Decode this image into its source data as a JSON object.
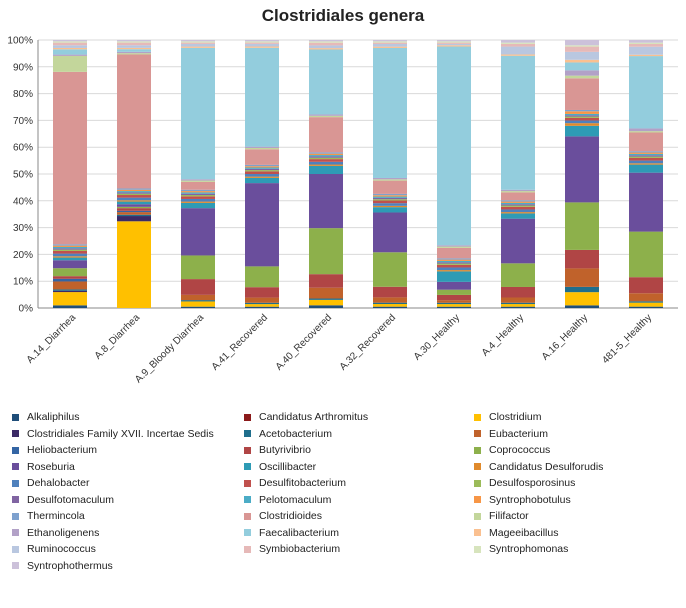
{
  "chart_data": {
    "type": "bar",
    "stacked": true,
    "percent": true,
    "title": "Clostridiales genera",
    "xlabel": "",
    "ylabel": "",
    "ylim": [
      0,
      100
    ],
    "y_ticks": [
      "0%",
      "10%",
      "20%",
      "30%",
      "40%",
      "50%",
      "60%",
      "70%",
      "80%",
      "90%",
      "100%"
    ],
    "categories": [
      "A.14_Diarrhea",
      "A.8_Diarrhea",
      "A.9_Bloody Diarrhea",
      "A.41_Recovered",
      "A.40_Recovered",
      "A.32_Recovered",
      "A.30_Healthy",
      "A.4_Healthy",
      "A.16_Healthy",
      "481-5_Healthy"
    ],
    "series": [
      {
        "name": "Alkaliphilus",
        "color": "#1F4E79",
        "values": [
          1,
          0,
          0.5,
          0.5,
          1,
          0.5,
          0.5,
          0.5,
          1,
          0.5
        ]
      },
      {
        "name": "Candidatus Arthromitus",
        "color": "#8B1A1A",
        "values": [
          0,
          0,
          0,
          0,
          0,
          0,
          0,
          0,
          0,
          0
        ]
      },
      {
        "name": "Clostridium",
        "color": "#FFC000",
        "values": [
          5,
          33,
          2,
          1,
          2,
          1,
          1,
          1,
          5,
          1.5
        ]
      },
      {
        "name": "Clostridiales Family XVII. Incertae Sedis",
        "color": "#3B2A66",
        "values": [
          0.5,
          2,
          0,
          0,
          0,
          0,
          0,
          0,
          0,
          0
        ]
      },
      {
        "name": "Acetobacterium",
        "color": "#1F6E8C",
        "values": [
          0.5,
          0.5,
          0.5,
          0.5,
          0.5,
          0.5,
          0.5,
          0.5,
          2,
          0.5
        ]
      },
      {
        "name": "Eubacterium",
        "color": "#C0622B",
        "values": [
          3,
          1,
          2,
          2,
          4,
          2,
          1,
          2,
          7,
          3
        ]
      },
      {
        "name": "Heliobacterium",
        "color": "#3465A4",
        "values": [
          1,
          0.5,
          0,
          0,
          0,
          0,
          0,
          0,
          0,
          0
        ]
      },
      {
        "name": "Butyrivibrio",
        "color": "#B04545",
        "values": [
          1,
          1,
          6,
          4,
          5,
          4,
          2,
          4,
          7,
          6
        ]
      },
      {
        "name": "Coprococcus",
        "color": "#8DB04B",
        "values": [
          3,
          0.5,
          9,
          8,
          17,
          13,
          2,
          9,
          18,
          17
        ]
      },
      {
        "name": "Roseburia",
        "color": "#6A4E9C",
        "values": [
          3,
          1,
          18,
          32,
          20,
          15,
          3,
          17,
          25,
          22
        ]
      },
      {
        "name": "Oscillibacter",
        "color": "#2E9BB5",
        "values": [
          1,
          1,
          2,
          2,
          3,
          2,
          4,
          2,
          4,
          3
        ]
      },
      {
        "name": "Candidatus Desulforudis",
        "color": "#E08A2C",
        "values": [
          0.5,
          0.5,
          0.5,
          0.5,
          0.5,
          0.5,
          0.5,
          0.5,
          1,
          0.5
        ]
      },
      {
        "name": "Dehalobacter",
        "color": "#4F81BD",
        "values": [
          1,
          1,
          1,
          1,
          1,
          1,
          1,
          1,
          1,
          1
        ]
      },
      {
        "name": "Desulfitobacterium",
        "color": "#C0504D",
        "values": [
          1,
          1,
          1,
          1,
          1,
          1,
          1,
          1,
          1,
          1
        ]
      },
      {
        "name": "Desulfosporosinus",
        "color": "#9BBB59",
        "values": [
          0.5,
          0.5,
          0.5,
          0.5,
          0.5,
          0.5,
          0.5,
          0.5,
          0.5,
          0.5
        ]
      },
      {
        "name": "Desulfotomaculum",
        "color": "#8064A2",
        "values": [
          0.5,
          0.5,
          0.5,
          0.5,
          0.5,
          0.5,
          0.5,
          0.5,
          0.5,
          0.5
        ]
      },
      {
        "name": "Pelotomaculum",
        "color": "#4BACC6",
        "values": [
          0.5,
          0.5,
          0.5,
          0.5,
          0.5,
          0.5,
          0.5,
          0.5,
          0.5,
          0.5
        ]
      },
      {
        "name": "Syntrophobotulus",
        "color": "#F79646",
        "values": [
          0.5,
          0.5,
          0.5,
          0.5,
          0.5,
          0.5,
          0.5,
          0.5,
          1,
          0.5
        ]
      },
      {
        "name": "Thermincola",
        "color": "#7EA1CE",
        "values": [
          0.5,
          0.5,
          0.5,
          0.5,
          0.5,
          0.5,
          0.5,
          0.5,
          0.5,
          0.5
        ]
      },
      {
        "name": "Clostridioides",
        "color": "#D99694",
        "values": [
          65,
          51,
          3,
          6,
          13,
          5,
          4,
          3,
          12,
          7
        ]
      },
      {
        "name": "Filifactor",
        "color": "#C3D69B",
        "values": [
          6,
          0.5,
          0.5,
          0.5,
          0.5,
          0.5,
          0.5,
          0.5,
          1,
          0.5
        ]
      },
      {
        "name": "Ethanoligenens",
        "color": "#B2A1C7",
        "values": [
          0.5,
          0.5,
          0.5,
          0.5,
          0.5,
          0.5,
          0.5,
          0.5,
          2,
          1
        ]
      },
      {
        "name": "Faecalibacterium",
        "color": "#93CDDD",
        "values": [
          2,
          1,
          50,
          38,
          24,
          49,
          76,
          51,
          3,
          27
        ]
      },
      {
        "name": "Mageeibacillus",
        "color": "#FAC090",
        "values": [
          0.5,
          0.5,
          0.5,
          0.5,
          0.5,
          0.5,
          0.5,
          0.5,
          1,
          0.5
        ]
      },
      {
        "name": "Ruminococcus",
        "color": "#B9C7E0",
        "values": [
          1,
          1,
          1,
          1,
          1,
          1,
          0.5,
          3,
          3,
          3
        ]
      },
      {
        "name": "Symbiobacterium",
        "color": "#E6B9B8",
        "values": [
          1,
          1,
          0.5,
          0.5,
          1,
          0.5,
          0.5,
          1,
          2,
          1
        ]
      },
      {
        "name": "Syntrophomonas",
        "color": "#D7E4BD",
        "values": [
          0.5,
          0.5,
          0.5,
          0.5,
          0.5,
          0.5,
          0.5,
          0.5,
          0.5,
          0.5
        ]
      },
      {
        "name": "Syntrophothermus",
        "color": "#CCC1DA",
        "values": [
          0.5,
          0.5,
          0.5,
          0.5,
          0.5,
          0.5,
          0.5,
          1,
          2,
          1
        ]
      }
    ],
    "legend_position": "bottom"
  }
}
